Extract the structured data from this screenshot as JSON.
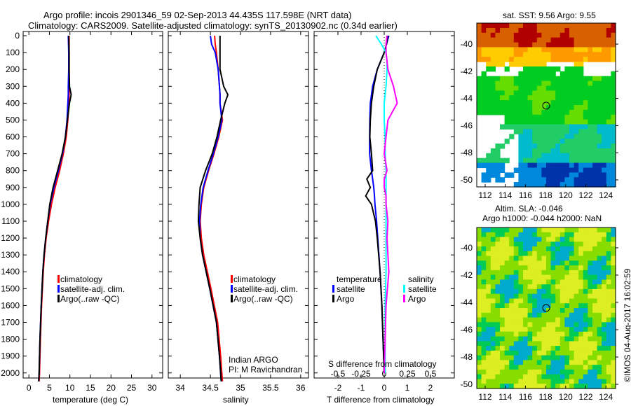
{
  "title": {
    "line1": "Argo profile: incois 2901346_59 02-Sep-2013 44.435S 117.598E (NRT data)",
    "line2": "Climatology: CARS2009. Satellite-adjusted climatology: synTS_20130902.nc (0.34d earlier)"
  },
  "colors": {
    "climatology": "#ff0000",
    "satellite": "#0000ff",
    "argo": "#000000",
    "sal_satellite": "#00ffff",
    "sal_argo": "#ff00ff"
  },
  "chart_data": [
    {
      "type": "line",
      "xlabel": "temperature (deg C)",
      "ylabel": "depth",
      "xlim": [
        -1.4,
        32.6
      ],
      "ylim": [
        2030,
        -25
      ],
      "xticks": [
        0,
        5,
        10,
        15,
        20,
        25,
        30
      ],
      "yticks": [
        0,
        100,
        200,
        300,
        400,
        500,
        600,
        700,
        800,
        900,
        1000,
        1100,
        1200,
        1300,
        1400,
        1500,
        1600,
        1700,
        1800,
        1900,
        2000
      ],
      "legend": [
        "climatology",
        "satellite-adj. clim.",
        "Argo(..raw -QC)"
      ],
      "depth": [
        0,
        100,
        200,
        300,
        350,
        400,
        500,
        600,
        700,
        800,
        900,
        1000,
        1100,
        1200,
        1300,
        1400,
        1600,
        1800,
        2000,
        2050
      ],
      "series": [
        {
          "name": "climatology",
          "color": "#ff0000",
          "values": [
            9.8,
            9.8,
            9.8,
            9.8,
            9.8,
            9.7,
            9.5,
            9.1,
            8.4,
            7.5,
            6.4,
            5.5,
            4.8,
            4.2,
            3.8,
            3.5,
            3.1,
            2.8,
            2.6,
            2.5
          ]
        },
        {
          "name": "satellite-adj. clim.",
          "color": "#0000ff",
          "values": [
            9.6,
            9.7,
            9.7,
            9.6,
            9.6,
            9.5,
            9.3,
            8.9,
            8.2,
            7.2,
            6.1,
            5.2,
            4.6,
            4.1,
            3.7,
            3.4,
            3.0,
            2.7,
            2.5,
            2.4
          ]
        },
        {
          "name": "Argo(..raw -QC)",
          "color": "#000000",
          "values": [
            9.7,
            9.8,
            9.8,
            9.9,
            10.3,
            9.9,
            9.4,
            8.9,
            8.1,
            7.0,
            5.9,
            5.1,
            4.6,
            4.1,
            3.7,
            3.4,
            3.0,
            2.7,
            2.5,
            2.4
          ]
        }
      ]
    },
    {
      "type": "line",
      "xlabel": "salinity",
      "ylabel": "depth",
      "xlim": [
        33.8,
        36.13
      ],
      "ylim": [
        2030,
        -25
      ],
      "xticks": [
        34,
        34.5,
        35,
        35.5,
        36
      ],
      "legend": [
        "climatology",
        "satellite-adj. clim.",
        "Argo(..raw -QC)"
      ],
      "note": [
        "Indian ARGO",
        "PI: M Ravichandran"
      ],
      "depth": [
        0,
        50,
        100,
        200,
        300,
        350,
        400,
        500,
        600,
        700,
        800,
        900,
        1000,
        1100,
        1200,
        1300,
        1500,
        1700,
        1900,
        2000,
        2050
      ],
      "series": [
        {
          "name": "climatology",
          "color": "#ff0000",
          "values": [
            34.57,
            34.58,
            34.6,
            34.63,
            34.65,
            34.66,
            34.66,
            34.7,
            34.64,
            34.56,
            34.47,
            34.39,
            34.35,
            34.33,
            34.35,
            34.39,
            34.51,
            34.62,
            34.67,
            34.69,
            34.7
          ]
        },
        {
          "name": "satellite-adj. clim.",
          "color": "#0000ff",
          "values": [
            34.5,
            34.52,
            34.58,
            34.63,
            34.65,
            34.66,
            34.66,
            34.69,
            34.63,
            34.55,
            34.46,
            34.38,
            34.34,
            34.32,
            34.33,
            34.37,
            34.49,
            34.6,
            34.65,
            34.67,
            34.68
          ]
        },
        {
          "name": "Argo(..raw -QC)",
          "color": "#000000",
          "values": [
            34.66,
            34.66,
            34.66,
            34.66,
            34.72,
            34.79,
            34.74,
            34.67,
            34.61,
            34.53,
            34.42,
            34.33,
            34.31,
            34.3,
            34.33,
            34.37,
            34.49,
            34.6,
            34.65,
            34.67,
            34.68
          ]
        }
      ]
    },
    {
      "type": "line",
      "xlabel": "T difference from climatology",
      "x2label": "S difference from climatology",
      "xlim": [
        -3.03,
        3.03
      ],
      "ylim": [
        2030,
        -25
      ],
      "xticks": [
        -2,
        -1,
        0,
        1,
        2
      ],
      "x2ticks": [
        "-0.5",
        "-0.25",
        "0",
        "0.25",
        "0.5"
      ],
      "legend": {
        "temperature": "temperature",
        "salinity": "salinity",
        "items": [
          "satellite",
          "Argo",
          "satellite",
          "Argo"
        ]
      },
      "depth": [
        0,
        50,
        100,
        150,
        200,
        300,
        400,
        500,
        600,
        700,
        800,
        850,
        900,
        950,
        1000,
        1100,
        1200,
        1400,
        1600,
        1800,
        2000
      ],
      "series": [
        {
          "name": "T satellite",
          "color": "#0000ff",
          "values": [
            0.2,
            0.1,
            0.0,
            -0.15,
            -0.3,
            -0.5,
            -0.6,
            -0.62,
            -0.63,
            -0.63,
            -0.55,
            -0.5,
            -0.45,
            -0.42,
            -0.4,
            -0.33,
            -0.28,
            -0.18,
            -0.1,
            -0.05,
            0.0
          ]
        },
        {
          "name": "T Argo",
          "color": "#000000",
          "values": [
            0.15,
            0.1,
            0.0,
            -0.15,
            -0.3,
            -0.45,
            -0.55,
            -0.6,
            -0.62,
            -0.55,
            -0.5,
            -0.75,
            -0.6,
            -0.8,
            -0.55,
            -0.38,
            -0.3,
            -0.18,
            -0.1,
            -0.05,
            0.0
          ]
        },
        {
          "name": "S satellite",
          "color": "#00ffff",
          "values": [
            -0.09,
            -0.03,
            0.02,
            0.03,
            0.03,
            0.02,
            0.0,
            0.0,
            0.01,
            0.01,
            0.02,
            0.02,
            0.02,
            0.02,
            0.02,
            0.02,
            0.02,
            0.02,
            0.01,
            0.01,
            0.01
          ]
        },
        {
          "name": "S Argo",
          "color": "#ff00ff",
          "values": [
            0.03,
            0.02,
            0.02,
            0.03,
            0.04,
            0.1,
            0.14,
            0.04,
            0.02,
            0.0,
            0.03,
            0.0,
            0.0,
            0.02,
            0.02,
            0.04,
            0.03,
            0.05,
            0.02,
            0.01,
            0.0
          ]
        }
      ]
    }
  ],
  "maps": {
    "sst": {
      "title": "sat. SST: 9.56 Argo: 9.55",
      "lon_ticks": [
        "112",
        "114",
        "116",
        "118",
        "120",
        "122",
        "124"
      ],
      "lat_ticks": [
        "-40",
        "-42",
        "-44",
        "-46",
        "-48",
        "-50"
      ]
    },
    "sla": {
      "title1": "Altim. SLA: -0.046",
      "title2": "Argo h1000: -0.044 h2000: NaN",
      "lon_ticks": [
        "112",
        "114",
        "116",
        "118",
        "120",
        "122",
        "124"
      ],
      "lat_ticks": [
        "-40",
        "-42",
        "-44",
        "-46",
        "-48",
        "-50"
      ]
    },
    "credit": "©IMOS 04-Aug-2017 16:02:59"
  }
}
